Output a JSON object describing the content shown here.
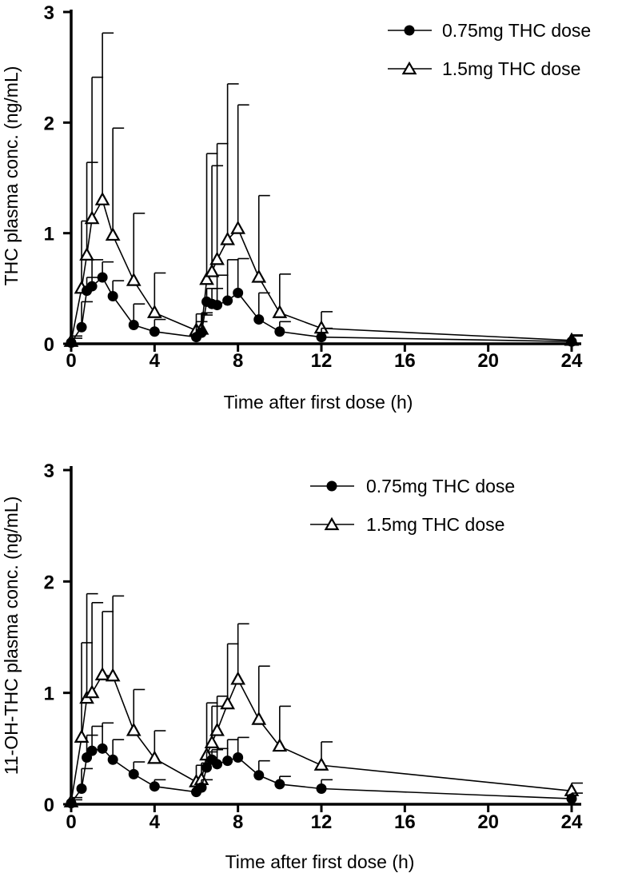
{
  "chart_data": [
    {
      "type": "line",
      "title": "",
      "xlabel": "Time after first dose (h)",
      "ylabel": "THC plasma conc. (ng/mL)",
      "xlim": [
        0,
        24
      ],
      "ylim": [
        0,
        3
      ],
      "xticks": [
        0,
        4,
        8,
        12,
        16,
        20,
        24
      ],
      "xtick_labels": [
        "0",
        "4",
        "8",
        "12",
        "16",
        "20",
        "24"
      ],
      "yticks": [
        0,
        1,
        2,
        3
      ],
      "ytick_labels": [
        "0",
        "1",
        "2",
        "3"
      ],
      "legend_position": "top-right",
      "series": [
        {
          "name": "0.75mg THC dose",
          "marker": "circle",
          "x": [
            0,
            0.5,
            0.75,
            1,
            1.5,
            2,
            3,
            4,
            6,
            6.25,
            6.5,
            6.75,
            7,
            7.5,
            8,
            9,
            10,
            12,
            24
          ],
          "values": [
            0.01,
            0.15,
            0.48,
            0.52,
            0.6,
            0.43,
            0.17,
            0.11,
            0.06,
            0.1,
            0.38,
            0.36,
            0.35,
            0.39,
            0.46,
            0.22,
            0.11,
            0.06,
            0.02
          ],
          "error_upper": [
            0.05,
            0.38,
            0.6,
            0.76,
            0.74,
            0.57,
            0.36,
            0.22,
            0.2,
            0.26,
            0.5,
            0.5,
            0.62,
            0.76,
            0.77,
            0.46,
            0.2,
            0.14,
            0.08
          ]
        },
        {
          "name": "1.5mg THC dose",
          "marker": "triangle",
          "x": [
            0,
            0.5,
            0.75,
            1,
            1.5,
            2,
            3,
            4,
            6,
            6.25,
            6.5,
            6.75,
            7,
            7.5,
            8,
            9,
            10,
            12,
            24
          ],
          "values": [
            0.02,
            0.5,
            0.8,
            1.13,
            1.3,
            0.98,
            0.57,
            0.28,
            0.12,
            0.13,
            0.58,
            0.65,
            0.76,
            0.94,
            1.04,
            0.6,
            0.28,
            0.14,
            0.03
          ],
          "error_upper": [
            0.07,
            1.11,
            1.64,
            2.41,
            2.81,
            1.95,
            1.18,
            0.64,
            0.27,
            0.28,
            1.72,
            1.61,
            1.81,
            2.35,
            2.16,
            1.34,
            0.63,
            0.29,
            0.07
          ]
        }
      ]
    },
    {
      "type": "line",
      "title": "",
      "xlabel": "Time after first dose (h)",
      "ylabel": "11-OH-THC plasma conc. (ng/mL)",
      "xlim": [
        0,
        24
      ],
      "ylim": [
        0,
        3
      ],
      "xticks": [
        0,
        4,
        8,
        12,
        16,
        20,
        24
      ],
      "xtick_labels": [
        "0",
        "4",
        "8",
        "12",
        "16",
        "20",
        "24"
      ],
      "yticks": [
        0,
        1,
        2,
        3
      ],
      "ytick_labels": [
        "0",
        "1",
        "2",
        "3"
      ],
      "legend_position": "top-right",
      "series": [
        {
          "name": "0.75mg THC dose",
          "marker": "circle",
          "x": [
            0,
            0.5,
            0.75,
            1,
            1.5,
            2,
            3,
            4,
            6,
            6.25,
            6.5,
            6.75,
            7,
            7.5,
            8,
            9,
            10,
            12,
            24
          ],
          "values": [
            0.01,
            0.14,
            0.42,
            0.48,
            0.5,
            0.4,
            0.27,
            0.16,
            0.11,
            0.15,
            0.33,
            0.4,
            0.36,
            0.39,
            0.42,
            0.26,
            0.18,
            0.14,
            0.05
          ],
          "error_upper": [
            0.04,
            0.32,
            0.62,
            0.7,
            0.73,
            0.58,
            0.38,
            0.22,
            0.18,
            0.22,
            0.47,
            0.49,
            0.5,
            0.58,
            0.6,
            0.39,
            0.25,
            0.22,
            0.1
          ]
        },
        {
          "name": "1.5mg THC dose",
          "marker": "triangle",
          "x": [
            0,
            0.5,
            0.75,
            1,
            1.5,
            2,
            3,
            4,
            6,
            6.25,
            6.5,
            6.75,
            7,
            7.5,
            8,
            9,
            10,
            12,
            24
          ],
          "values": [
            0.02,
            0.6,
            0.95,
            1.0,
            1.16,
            1.15,
            0.66,
            0.41,
            0.2,
            0.22,
            0.44,
            0.55,
            0.66,
            0.9,
            1.12,
            0.76,
            0.52,
            0.35,
            0.12
          ],
          "error_upper": [
            0.06,
            1.45,
            1.89,
            1.81,
            1.73,
            1.87,
            1.03,
            0.66,
            0.35,
            0.37,
            0.91,
            0.88,
            0.97,
            1.44,
            1.62,
            1.24,
            0.88,
            0.56,
            0.19
          ]
        }
      ]
    }
  ]
}
